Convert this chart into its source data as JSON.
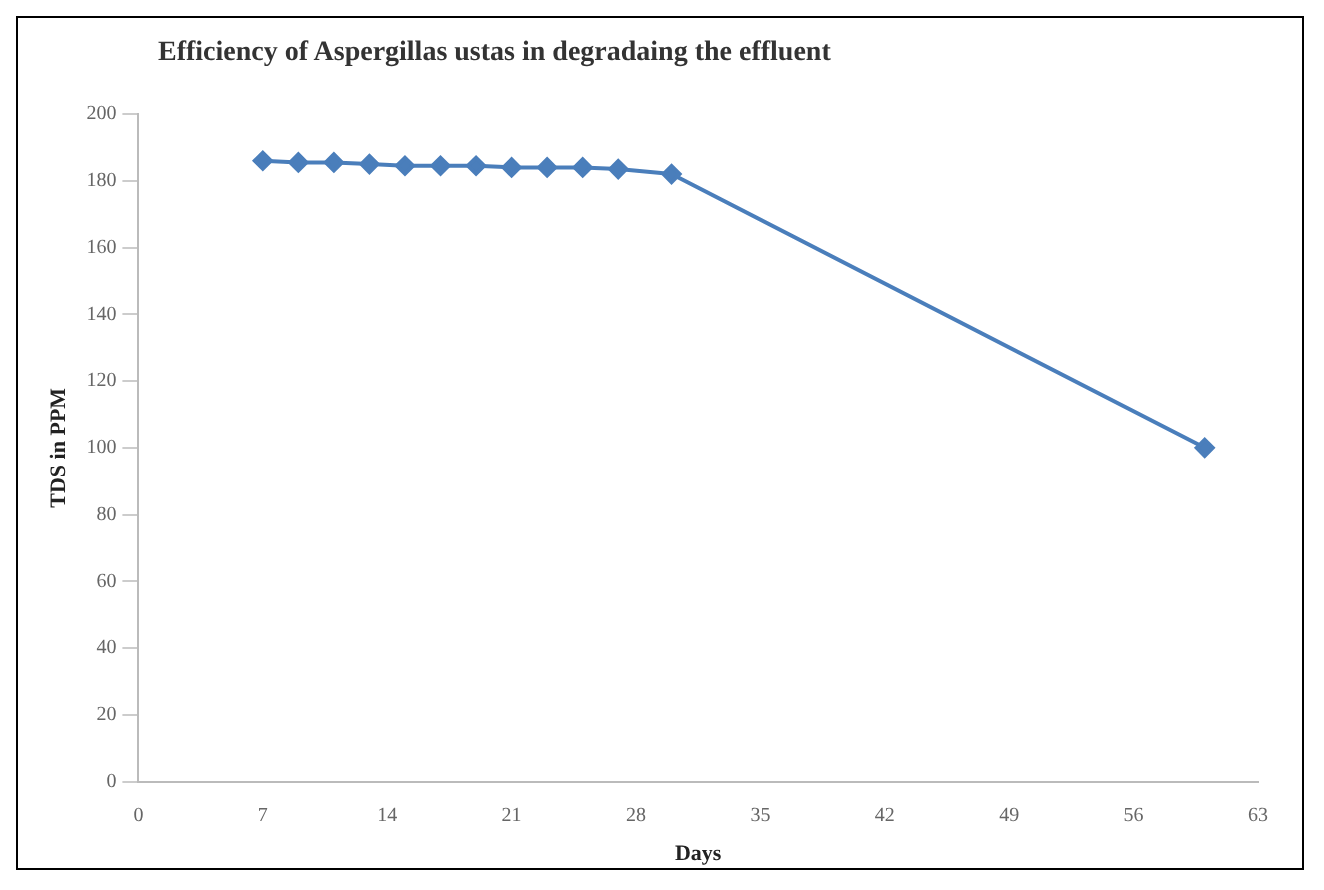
{
  "chart_data": {
    "type": "line",
    "title": "Efficiency of Aspergillas ustas in degradaing the effluent",
    "xlabel": "Days",
    "ylabel": "TDS in PPM",
    "x": [
      7,
      9,
      11,
      13,
      15,
      17,
      19,
      21,
      23,
      25,
      27,
      30,
      60
    ],
    "series": [
      {
        "color": "#4a7ebb",
        "values": [
          186,
          185.5,
          185.5,
          185,
          184.5,
          184.5,
          184.5,
          184,
          184,
          184,
          183.5,
          182,
          100
        ]
      }
    ],
    "xlim": [
      0,
      63
    ],
    "xticks": [
      0,
      7,
      14,
      21,
      28,
      35,
      42,
      49,
      56,
      63
    ],
    "ylim": [
      0,
      200
    ],
    "yticks": [
      0,
      20,
      40,
      60,
      80,
      100,
      120,
      140,
      160,
      180,
      200
    ],
    "grid": false,
    "legend": false,
    "marker": "diamond",
    "line_style": "solid"
  }
}
